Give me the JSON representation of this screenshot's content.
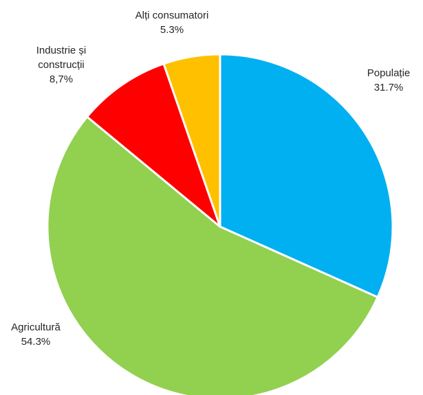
{
  "chart_data": {
    "type": "pie",
    "title": "",
    "start_angle_deg": 0,
    "direction": "clockwise",
    "slices": [
      {
        "name": "Populație",
        "label_lines": [
          "Populație"
        ],
        "value_label": "31.7%",
        "value": 31.7,
        "color": "#00B0F0"
      },
      {
        "name": "Agricultură",
        "label_lines": [
          "Agricultură"
        ],
        "value_label": "54.3%",
        "value": 54.3,
        "color": "#92D050"
      },
      {
        "name": "Industrie și construcții",
        "label_lines": [
          "Industrie și",
          "construcții"
        ],
        "value_label": "8,7%",
        "value": 8.7,
        "color": "#FF0000"
      },
      {
        "name": "Alți consumatori",
        "label_lines": [
          "Alți consumatori"
        ],
        "value_label": "5.3%",
        "value": 5.3,
        "color": "#FFC000"
      }
    ],
    "legend": "none"
  }
}
